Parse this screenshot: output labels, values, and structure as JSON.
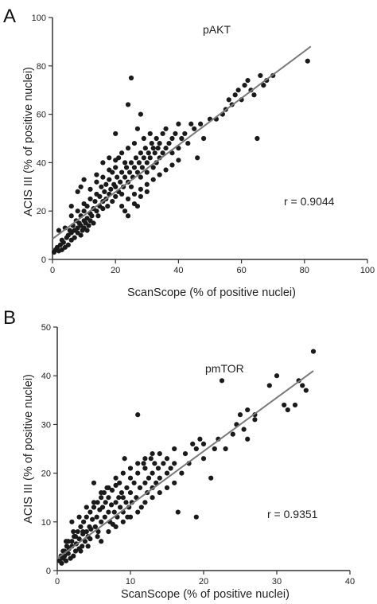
{
  "chart_data": [
    {
      "panel": "A",
      "type": "scatter",
      "title": "pAKT",
      "xlabel": "ScanScope (% of positive nuclei)",
      "ylabel": "ACIS III (% of positive nuclei)",
      "xlim": [
        0,
        100
      ],
      "ylim": [
        0,
        100
      ],
      "xticks": [
        0,
        20,
        40,
        60,
        80,
        100
      ],
      "yticks": [
        0,
        20,
        40,
        60,
        80,
        100
      ],
      "annotation": "r = 0.9044",
      "grid": false,
      "point_color": "#1a1a1a",
      "line_color": "#7a7a7a",
      "fit_line": {
        "x": [
          0,
          82
        ],
        "y": [
          8.5,
          88
        ]
      },
      "points": [
        [
          0.5,
          3
        ],
        [
          1,
          4
        ],
        [
          1.5,
          5
        ],
        [
          2,
          3.5
        ],
        [
          2.5,
          6
        ],
        [
          3,
          4
        ],
        [
          3,
          8
        ],
        [
          3.5,
          7
        ],
        [
          4,
          5
        ],
        [
          4.5,
          9
        ],
        [
          5,
          6
        ],
        [
          5,
          10
        ],
        [
          5.5,
          12
        ],
        [
          6,
          8
        ],
        [
          6,
          11
        ],
        [
          6.5,
          14
        ],
        [
          7,
          9
        ],
        [
          7,
          12
        ],
        [
          7.5,
          16
        ],
        [
          8,
          11
        ],
        [
          8,
          13
        ],
        [
          8.5,
          15
        ],
        [
          9,
          10
        ],
        [
          9,
          14
        ],
        [
          9,
          18
        ],
        [
          9.5,
          12
        ],
        [
          10,
          13
        ],
        [
          10,
          16
        ],
        [
          10,
          20
        ],
        [
          10.5,
          15
        ],
        [
          11,
          12
        ],
        [
          11,
          17
        ],
        [
          11,
          22
        ],
        [
          11.5,
          14
        ],
        [
          12,
          16
        ],
        [
          12,
          19
        ],
        [
          12,
          25
        ],
        [
          12.5,
          18
        ],
        [
          13,
          15
        ],
        [
          13,
          21
        ],
        [
          13.5,
          24
        ],
        [
          14,
          20
        ],
        [
          14,
          27
        ],
        [
          14.5,
          18
        ],
        [
          15,
          22
        ],
        [
          15,
          26
        ],
        [
          15.5,
          30
        ],
        [
          16,
          21
        ],
        [
          16,
          24
        ],
        [
          16.5,
          28
        ],
        [
          17,
          25
        ],
        [
          17,
          31
        ],
        [
          17.5,
          22
        ],
        [
          18,
          27
        ],
        [
          18,
          33
        ],
        [
          18.5,
          29
        ],
        [
          19,
          24
        ],
        [
          19,
          36
        ],
        [
          19.5,
          31
        ],
        [
          20,
          26
        ],
        [
          20,
          30
        ],
        [
          20,
          38
        ],
        [
          20.5,
          34
        ],
        [
          21,
          28
        ],
        [
          21,
          42
        ],
        [
          21.5,
          32
        ],
        [
          22,
          27
        ],
        [
          22,
          36
        ],
        [
          22,
          44
        ],
        [
          22.5,
          30
        ],
        [
          23,
          34
        ],
        [
          23,
          40
        ],
        [
          23.5,
          38
        ],
        [
          24,
          32
        ],
        [
          24,
          46
        ],
        [
          24.5,
          36
        ],
        [
          25,
          30
        ],
        [
          25,
          40
        ],
        [
          25,
          75
        ],
        [
          25.5,
          34
        ],
        [
          26,
          38
        ],
        [
          26,
          48
        ],
        [
          26.5,
          42
        ],
        [
          27,
          36
        ],
        [
          27,
          54
        ],
        [
          27.5,
          40
        ],
        [
          28,
          34
        ],
        [
          28,
          44
        ],
        [
          28.5,
          38
        ],
        [
          29,
          42
        ],
        [
          29,
          50
        ],
        [
          29.5,
          46
        ],
        [
          30,
          40
        ],
        [
          30,
          36
        ],
        [
          30.5,
          44
        ],
        [
          31,
          42
        ],
        [
          31,
          52
        ],
        [
          31.5,
          48
        ],
        [
          32,
          38
        ],
        [
          32,
          46
        ],
        [
          32.5,
          44
        ],
        [
          33,
          50
        ],
        [
          33,
          40
        ],
        [
          33.5,
          46
        ],
        [
          34,
          42
        ],
        [
          34,
          48
        ],
        [
          35,
          44
        ],
        [
          35,
          52
        ],
        [
          36,
          46
        ],
        [
          36,
          54
        ],
        [
          37,
          48
        ],
        [
          38,
          50
        ],
        [
          38,
          44
        ],
        [
          39,
          52
        ],
        [
          40,
          46
        ],
        [
          40,
          56
        ],
        [
          41,
          50
        ],
        [
          42,
          52
        ],
        [
          43,
          48
        ],
        [
          44,
          56
        ],
        [
          45,
          54
        ],
        [
          46,
          42
        ],
        [
          47,
          56
        ],
        [
          48,
          50
        ],
        [
          50,
          58
        ],
        [
          52,
          58
        ],
        [
          54,
          60
        ],
        [
          55,
          62
        ],
        [
          56,
          66
        ],
        [
          57,
          64
        ],
        [
          58,
          68
        ],
        [
          59,
          70
        ],
        [
          60,
          66
        ],
        [
          61,
          72
        ],
        [
          62,
          74
        ],
        [
          63,
          70
        ],
        [
          64,
          68
        ],
        [
          65,
          50
        ],
        [
          66,
          76
        ],
        [
          67,
          72
        ],
        [
          68,
          74
        ],
        [
          70,
          76
        ],
        [
          81,
          82
        ],
        [
          23,
          20
        ],
        [
          24,
          25
        ],
        [
          26,
          27
        ],
        [
          27,
          22
        ],
        [
          28,
          26
        ],
        [
          30,
          28
        ],
        [
          2,
          12
        ],
        [
          4,
          13
        ],
        [
          6,
          18
        ],
        [
          8,
          20
        ],
        [
          10,
          23
        ],
        [
          12,
          29
        ],
        [
          14,
          32
        ],
        [
          16,
          34
        ],
        [
          18,
          37
        ],
        [
          20,
          41
        ],
        [
          22,
          22
        ],
        [
          24,
          18
        ],
        [
          26,
          23
        ],
        [
          28,
          29
        ],
        [
          30,
          31
        ],
        [
          32,
          33
        ],
        [
          34,
          35
        ],
        [
          36,
          37
        ],
        [
          38,
          39
        ],
        [
          40,
          41
        ],
        [
          6,
          22
        ],
        [
          8,
          28
        ],
        [
          9,
          30
        ],
        [
          10,
          33
        ],
        [
          14,
          35
        ],
        [
          16,
          40
        ],
        [
          18,
          42
        ],
        [
          20,
          52
        ],
        [
          24,
          64
        ],
        [
          28,
          60
        ]
      ]
    },
    {
      "panel": "B",
      "type": "scatter",
      "title": "pmTOR",
      "xlabel": "ScanScope (% of positive nuclei)",
      "ylabel": "ACIS III (% of positive nuclei)",
      "xlim": [
        0,
        40
      ],
      "ylim": [
        0,
        50
      ],
      "xticks": [
        0,
        10,
        20,
        30,
        40
      ],
      "yticks": [
        0,
        10,
        20,
        30,
        40,
        50
      ],
      "annotation": "r = 0.9351",
      "grid": false,
      "point_color": "#1a1a1a",
      "line_color": "#7a7a7a",
      "fit_line": {
        "x": [
          0,
          35
        ],
        "y": [
          2.5,
          41
        ]
      },
      "points": [
        [
          0.3,
          2
        ],
        [
          0.5,
          3
        ],
        [
          0.6,
          1.5
        ],
        [
          0.8,
          2.5
        ],
        [
          1,
          3
        ],
        [
          1,
          4
        ],
        [
          1.2,
          2
        ],
        [
          1.3,
          5
        ],
        [
          1.5,
          3.5
        ],
        [
          1.6,
          4.5
        ],
        [
          1.8,
          2.5
        ],
        [
          2,
          5
        ],
        [
          2,
          6
        ],
        [
          2.2,
          3
        ],
        [
          2.3,
          7
        ],
        [
          2.5,
          4
        ],
        [
          2.6,
          5.5
        ],
        [
          2.8,
          8
        ],
        [
          3,
          4.5
        ],
        [
          3,
          6.5
        ],
        [
          3.2,
          9
        ],
        [
          3.4,
          5
        ],
        [
          3.5,
          7.5
        ],
        [
          3.6,
          10
        ],
        [
          3.8,
          6
        ],
        [
          4,
          8
        ],
        [
          4,
          11
        ],
        [
          4.2,
          7
        ],
        [
          4.4,
          9
        ],
        [
          4.5,
          12
        ],
        [
          4.6,
          8.5
        ],
        [
          4.8,
          10.5
        ],
        [
          5,
          13
        ],
        [
          5,
          18
        ],
        [
          5.2,
          9
        ],
        [
          5.4,
          11
        ],
        [
          5.5,
          14
        ],
        [
          5.6,
          8
        ],
        [
          5.8,
          12.5
        ],
        [
          6,
          15
        ],
        [
          6,
          10
        ],
        [
          6.2,
          13
        ],
        [
          6.4,
          16
        ],
        [
          6.5,
          11
        ],
        [
          6.6,
          14
        ],
        [
          6.8,
          17
        ],
        [
          7,
          12
        ],
        [
          7,
          15
        ],
        [
          7.2,
          10
        ],
        [
          7.4,
          13.5
        ],
        [
          7.5,
          16.5
        ],
        [
          7.6,
          9.5
        ],
        [
          7.8,
          12
        ],
        [
          8,
          14
        ],
        [
          8,
          17.5
        ],
        [
          8.2,
          11
        ],
        [
          8.4,
          15
        ],
        [
          8.5,
          18
        ],
        [
          8.6,
          13
        ],
        [
          8.8,
          16
        ],
        [
          9,
          12
        ],
        [
          9,
          15
        ],
        [
          9.2,
          23
        ],
        [
          9.4,
          14
        ],
        [
          9.5,
          17
        ],
        [
          9.6,
          11
        ],
        [
          9.8,
          13
        ],
        [
          10,
          16
        ],
        [
          10,
          19
        ],
        [
          10.2,
          14
        ],
        [
          10.5,
          18
        ],
        [
          10.8,
          15
        ],
        [
          11,
          32
        ],
        [
          11,
          20
        ],
        [
          11.3,
          17
        ],
        [
          11.5,
          13
        ],
        [
          11.8,
          22
        ],
        [
          12,
          18
        ],
        [
          12,
          21
        ],
        [
          12.3,
          16
        ],
        [
          12.5,
          19
        ],
        [
          12.8,
          23
        ],
        [
          13,
          20
        ],
        [
          13,
          17
        ],
        [
          13.3,
          22
        ],
        [
          13.5,
          18
        ],
        [
          13.8,
          21
        ],
        [
          14,
          24
        ],
        [
          14,
          19
        ],
        [
          14.5,
          22
        ],
        [
          15,
          20
        ],
        [
          15,
          23
        ],
        [
          15.5,
          21
        ],
        [
          16,
          22
        ],
        [
          16,
          25
        ],
        [
          16.5,
          12
        ],
        [
          17,
          20
        ],
        [
          17.5,
          24
        ],
        [
          18,
          22
        ],
        [
          18.5,
          26
        ],
        [
          19,
          11
        ],
        [
          19,
          25
        ],
        [
          19.5,
          27
        ],
        [
          20,
          23
        ],
        [
          20,
          26
        ],
        [
          21,
          19
        ],
        [
          21.5,
          25
        ],
        [
          22,
          27
        ],
        [
          22.5,
          39
        ],
        [
          23,
          25
        ],
        [
          24,
          28
        ],
        [
          24.5,
          30
        ],
        [
          25,
          32
        ],
        [
          25.5,
          29
        ],
        [
          26,
          27
        ],
        [
          26,
          33
        ],
        [
          27,
          31
        ],
        [
          27,
          32
        ],
        [
          29,
          38
        ],
        [
          30,
          40
        ],
        [
          31,
          34
        ],
        [
          31.5,
          33
        ],
        [
          32.5,
          34
        ],
        [
          33,
          39
        ],
        [
          33.5,
          38
        ],
        [
          34,
          37
        ],
        [
          35,
          45
        ],
        [
          2,
          10
        ],
        [
          3,
          11
        ],
        [
          4,
          13
        ],
        [
          5,
          14
        ],
        [
          6,
          16
        ],
        [
          7,
          17
        ],
        [
          8,
          19
        ],
        [
          9,
          20
        ],
        [
          10,
          21
        ],
        [
          11,
          22
        ],
        [
          12,
          23
        ],
        [
          13,
          24
        ],
        [
          6,
          6
        ],
        [
          7,
          8
        ],
        [
          8,
          9
        ],
        [
          9,
          10
        ],
        [
          10,
          11
        ],
        [
          11,
          12
        ],
        [
          12,
          14
        ],
        [
          13,
          15
        ],
        [
          14,
          16
        ],
        [
          15,
          17
        ],
        [
          16,
          18
        ],
        [
          1.5,
          6
        ],
        [
          2.5,
          7
        ],
        [
          3.5,
          8
        ],
        [
          4.5,
          6.5
        ],
        [
          5.5,
          7
        ],
        [
          0.8,
          4
        ],
        [
          1.2,
          6
        ],
        [
          2.2,
          8
        ],
        [
          3.2,
          4
        ],
        [
          4.2,
          5
        ]
      ]
    }
  ]
}
